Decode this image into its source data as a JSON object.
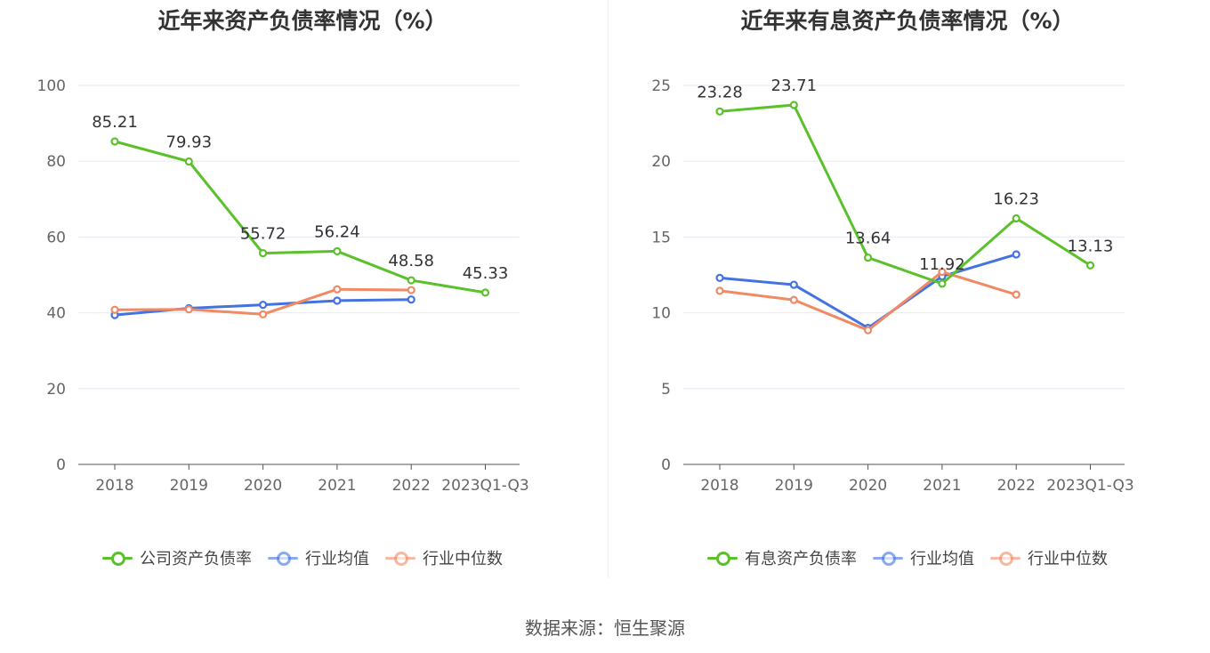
{
  "source": "数据来源：恒生聚源",
  "chart_data": [
    {
      "type": "line",
      "title": "近年来资产负债率情况（%）",
      "categories": [
        "2018",
        "2019",
        "2020",
        "2021",
        "2022",
        "2023Q1-Q3"
      ],
      "ylim": [
        0,
        100
      ],
      "yticks": [
        0,
        20,
        40,
        60,
        80,
        100
      ],
      "grid": true,
      "legend_position": "bottom",
      "series": [
        {
          "name": "公司资产负债率",
          "color": "#5ac12b",
          "labels": true,
          "values": [
            85.21,
            79.93,
            55.72,
            56.24,
            48.58,
            45.33
          ]
        },
        {
          "name": "行业均值",
          "color": "#4472e0",
          "labels": false,
          "values": [
            39.4,
            41.2,
            42.1,
            43.2,
            43.5,
            null
          ]
        },
        {
          "name": "行业中位数",
          "color": "#f08a65",
          "labels": false,
          "values": [
            40.8,
            40.9,
            39.6,
            46.2,
            46.0,
            null
          ]
        }
      ],
      "data_labels": [
        "85.21",
        "79.93",
        "55.72",
        "56.24",
        "48.58",
        "45.33"
      ]
    },
    {
      "type": "line",
      "title": "近年来有息资产负债率情况（%）",
      "categories": [
        "2018",
        "2019",
        "2020",
        "2021",
        "2022",
        "2023Q1-Q3"
      ],
      "ylim": [
        0,
        25
      ],
      "yticks": [
        0,
        5,
        10,
        15,
        20,
        25
      ],
      "grid": true,
      "legend_position": "bottom",
      "series": [
        {
          "name": "有息资产负债率",
          "color": "#5ac12b",
          "labels": true,
          "values": [
            23.28,
            23.71,
            13.64,
            11.92,
            16.23,
            13.13
          ]
        },
        {
          "name": "行业均值",
          "color": "#4472e0",
          "labels": false,
          "values": [
            12.3,
            11.85,
            9.0,
            12.4,
            13.85,
            null
          ]
        },
        {
          "name": "行业中位数",
          "color": "#f08a65",
          "labels": false,
          "values": [
            11.45,
            10.85,
            8.85,
            12.7,
            11.2,
            null
          ]
        }
      ],
      "data_labels": [
        "23.28",
        "23.71",
        "13.64",
        "11.92",
        "16.23",
        "13.13"
      ]
    }
  ]
}
